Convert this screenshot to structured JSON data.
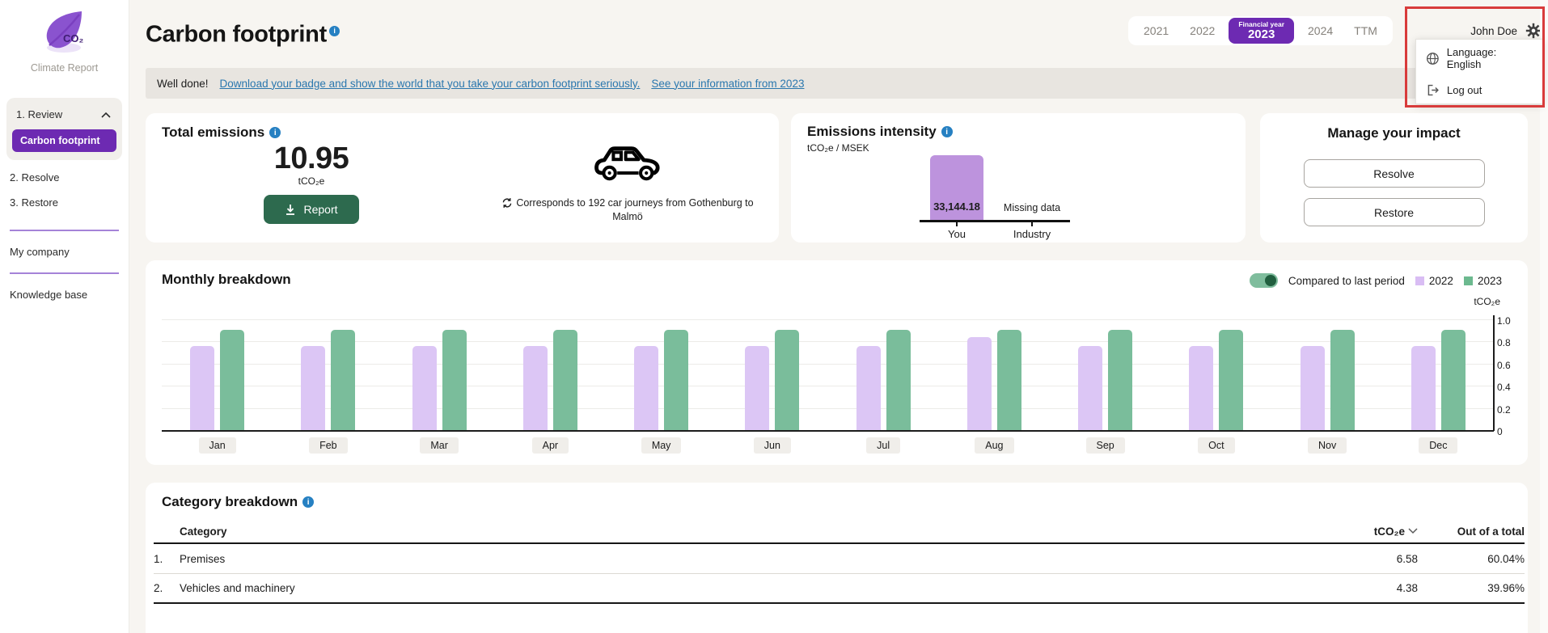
{
  "app": {
    "logo_text": "CO₂",
    "name": "Climate Report"
  },
  "sidebar": {
    "section_review": "1. Review",
    "active_item": "Carbon footprint",
    "item_resolve": "2. Resolve",
    "item_restore": "3. Restore",
    "item_my_company": "My company",
    "item_knowledge_base": "Knowledge base"
  },
  "header": {
    "title": "Carbon footprint",
    "tabs_before": [
      "2021",
      "2022"
    ],
    "active_tab": {
      "top": "Financial year",
      "year": "2023"
    },
    "tabs_after": [
      "2024",
      "TTM"
    ],
    "user_name": "John Doe",
    "user_menu": {
      "language": "Language: English",
      "logout": "Log out"
    }
  },
  "banner": {
    "prefix": "Well done!",
    "badge_link": "Download your badge and show the world that you take your carbon footprint seriously.",
    "info_link": "See your information from 2023"
  },
  "total_emissions": {
    "title": "Total emissions",
    "value": "10.95",
    "unit": "tCO₂e",
    "report_button": "Report",
    "equivalence": "Corresponds to 192 car journeys from Gothenburg to Malmö"
  },
  "emissions_intensity": {
    "title": "Emissions intensity",
    "unit": "tCO₂e / MSEK",
    "you_value": "33,144.18",
    "industry_value": "Missing data",
    "label_you": "You",
    "label_industry": "Industry"
  },
  "manage_impact": {
    "title": "Manage your impact",
    "resolve_button": "Resolve",
    "restore_button": "Restore"
  },
  "monthly": {
    "title": "Monthly breakdown",
    "toggle_label": "Compared to last period",
    "unit": "tCO₂e"
  },
  "category_table": {
    "title": "Category breakdown",
    "col_category": "Category",
    "col_tco2e": "tCO₂e",
    "col_total": "Out of a total",
    "rows": [
      {
        "index": "1.",
        "name": "Premises",
        "tco2e": "6.58",
        "share": "60.04%"
      },
      {
        "index": "2.",
        "name": "Vehicles and machinery",
        "tco2e": "4.38",
        "share": "39.96%"
      }
    ]
  },
  "chart_data": [
    {
      "type": "bar",
      "title": "Monthly breakdown",
      "categories": [
        "Jan",
        "Feb",
        "Mar",
        "Apr",
        "May",
        "Jun",
        "Jul",
        "Aug",
        "Sep",
        "Oct",
        "Nov",
        "Dec"
      ],
      "series": [
        {
          "name": "2022",
          "color": "#dcc6f5",
          "values": [
            0.77,
            0.77,
            0.77,
            0.77,
            0.77,
            0.77,
            0.77,
            0.85,
            0.77,
            0.77,
            0.77,
            0.77
          ]
        },
        {
          "name": "2023",
          "color": "#7abd9b",
          "values": [
            0.91,
            0.91,
            0.91,
            0.91,
            0.91,
            0.91,
            0.91,
            0.91,
            0.91,
            0.91,
            0.91,
            0.91
          ]
        }
      ],
      "xlabel": "",
      "ylabel": "tCO₂e",
      "ylim": [
        0,
        1.0
      ],
      "yticks": [
        0,
        0.2,
        0.4,
        0.6,
        0.8,
        1.0
      ],
      "grid": true,
      "legend_position": "top-right"
    },
    {
      "type": "bar",
      "title": "Emissions intensity (tCO₂e / MSEK)",
      "categories": [
        "You",
        "Industry"
      ],
      "values": [
        33144.18,
        null
      ],
      "value_labels": [
        "33,144.18",
        "Missing data"
      ]
    }
  ],
  "colors": {
    "brand_purple": "#6d2ab2",
    "bar_2022": "#dcc6f5",
    "bar_2023": "#7abd9b",
    "intensity_bar": "#bd93dd",
    "report_green": "#2d6a4e",
    "link_blue": "#2a77ae",
    "info_blue": "#2680c2",
    "annotation_red": "#d83b3b",
    "toggle_green": "#7fbd9d"
  }
}
